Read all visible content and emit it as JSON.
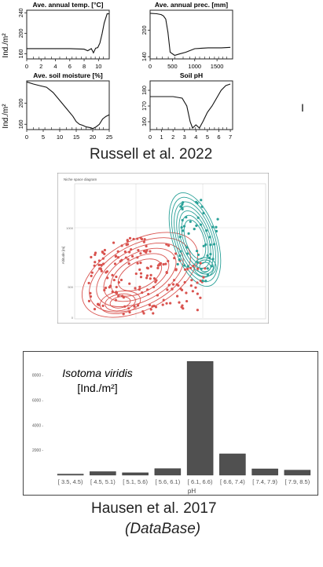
{
  "russell": {
    "caption": "Russell et al. 2022",
    "ylabel": "Ind./m²",
    "panels": [
      {
        "title": "Ave. annual temp. [°C]",
        "xticks": [
          "0",
          "2",
          "4",
          "6",
          "8",
          "10"
        ],
        "yticks": [
          "160",
          "200",
          "240"
        ],
        "xlim": [
          0,
          11.5
        ],
        "ylim": [
          150,
          245
        ],
        "x": [
          0,
          2,
          4,
          6,
          8,
          8.5,
          9,
          9.3,
          9.6,
          9.9,
          10.2,
          10.5,
          10.8,
          11.2,
          11.5
        ],
        "y": [
          170,
          170,
          170,
          170,
          169,
          166,
          170,
          162,
          171,
          172,
          181,
          199,
          220,
          238,
          238
        ]
      },
      {
        "title": "Ave. annual prec. [mm]",
        "xticks": [
          "0",
          "500",
          "1000",
          "1500"
        ],
        "yticks": [
          "140",
          "200"
        ],
        "xlim": [
          0,
          1850
        ],
        "ylim": [
          135,
          245
        ],
        "x": [
          0,
          150,
          250,
          300,
          350,
          400,
          450,
          550,
          650,
          800,
          1000,
          1300,
          1600,
          1800
        ],
        "y": [
          238,
          237,
          235,
          232,
          225,
          195,
          150,
          143,
          146,
          150,
          158,
          160,
          160,
          161
        ]
      },
      {
        "title": "Ave. soil moisture [%]",
        "xticks": [
          "0",
          "5",
          "10",
          "15",
          "20",
          "25"
        ],
        "yticks": [
          "160",
          "200"
        ],
        "xlim": [
          0,
          25
        ],
        "ylim": [
          150,
          242
        ],
        "x": [
          0,
          2,
          4,
          6,
          8,
          10,
          12,
          14,
          15,
          16,
          17,
          18,
          19,
          20,
          21,
          22,
          23,
          24,
          25
        ],
        "y": [
          240,
          236,
          233,
          230,
          220,
          205,
          190,
          175,
          165,
          160,
          158,
          155,
          154,
          152,
          155,
          160,
          170,
          175,
          178
        ]
      },
      {
        "title": "Soil pH",
        "xticks": [
          "0",
          "1",
          "2",
          "3",
          "4",
          "5",
          "6",
          "7"
        ],
        "yticks": [
          "160",
          "170",
          "180"
        ],
        "xlim": [
          0,
          7.2
        ],
        "ylim": [
          155,
          186
        ],
        "x": [
          0,
          0.5,
          1,
          2,
          2.8,
          3.2,
          3.5,
          3.7,
          4.0,
          4.3,
          4.6,
          5.0,
          5.4,
          5.8,
          6.2,
          6.6,
          7.0
        ],
        "y": [
          176,
          176,
          176,
          176,
          175,
          170,
          160,
          156,
          158,
          156,
          160,
          166,
          170,
          175,
          180,
          183,
          184
        ]
      }
    ]
  },
  "scatter": {
    "title": "Niche space diagram",
    "ylabel": "Altitude [m]",
    "yticks": [
      "1000",
      "500",
      "0"
    ],
    "colors": {
      "red": "#d9534f",
      "teal": "#2aa198"
    }
  },
  "chart_data": {
    "type": "bar",
    "title": "Isotoma viridis",
    "subtitle": "[Ind./m²]",
    "xlabel": "pH",
    "ylabel": "",
    "ylim": [
      0,
      9300
    ],
    "yticks": [
      2000,
      4000,
      6000,
      8000
    ],
    "ytick_labels": [
      "2000 -",
      "4000 -",
      "6000 -",
      "8000 -"
    ],
    "categories": [
      "[ 3.5, 4.5)",
      "[ 4.5, 5.1)",
      "[ 5.1, 5.6)",
      "[ 5.6, 6.1)",
      "[ 6.1, 6.6)",
      "[ 6.6, 7.4)",
      "[ 7.4, 7.9)",
      "[ 7.9, 8.5)"
    ],
    "values": [
      80,
      280,
      190,
      520,
      9100,
      1700,
      500,
      400
    ],
    "bar_color": "#505050",
    "grid": false
  },
  "hausen": {
    "caption_line1": "Hausen et al. 2017",
    "caption_line2": "(DataBase)"
  },
  "side_mark": "I"
}
